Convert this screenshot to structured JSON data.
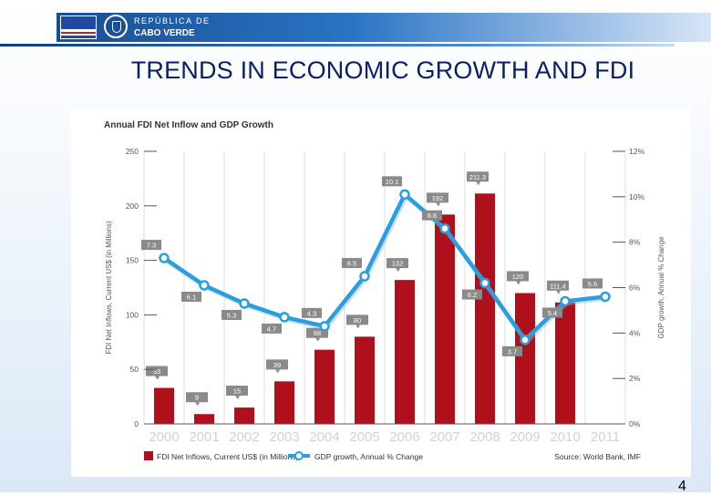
{
  "header": {
    "republic_line1": "REPÚBLICA DE",
    "republic_line2": "CABO VERDE"
  },
  "slide": {
    "title": "TRENDS IN ECONOMIC GROWTH AND FDI",
    "page_number": "4"
  },
  "colors": {
    "bar": "#b0101c",
    "line": "#2a9fe0",
    "header_blue": "#1a4f93",
    "title_navy": "#0b1f66"
  },
  "chart_data": {
    "type": "bar",
    "title": "Annual FDI Net Inflow and GDP Growth",
    "categories": [
      "2000",
      "2001",
      "2002",
      "2003",
      "2004",
      "2005",
      "2006",
      "2007",
      "2008",
      "2009",
      "2010",
      "2011"
    ],
    "ylabel": "FDI Net Inflows, Current US$ (in Millions)",
    "y2label": "GDP growth, Annual % Change",
    "ylim": [
      0,
      250
    ],
    "y2lim": [
      0,
      12
    ],
    "yticks": [
      "0",
      "50",
      "100",
      "150",
      "200",
      "250"
    ],
    "y2ticks": [
      "0%",
      "2%",
      "4%",
      "6%",
      "8%",
      "10%",
      "12%"
    ],
    "series": [
      {
        "name": "FDI Net Inflows, Current US$ (in Millions)",
        "kind": "bar",
        "values": [
          33,
          9,
          15,
          39,
          68,
          80,
          132,
          192,
          211.3,
          120,
          111.4,
          null
        ],
        "labels": [
          "33",
          "9",
          "15",
          "39",
          "68",
          "80",
          "132",
          "192",
          "211.3",
          "120",
          "111.4",
          ""
        ]
      },
      {
        "name": "GDP growth, Annual % Change",
        "kind": "line",
        "values": [
          7.3,
          6.1,
          5.3,
          4.7,
          4.3,
          6.5,
          10.1,
          8.6,
          6.2,
          3.7,
          5.4,
          5.6
        ],
        "labels": [
          "7.3",
          "6.1",
          "5.3",
          "4.7",
          "4.3",
          "6.5",
          "10.1",
          "8.6",
          "6.2",
          "3.7",
          "5.4",
          "5.6"
        ]
      }
    ],
    "legend": [
      "FDI Net Inflows, Current US$ (in Millions)",
      "GDP growth, Annual % Change"
    ],
    "legend_position": "bottom",
    "source": "Source: World Bank, IMF",
    "grid": true
  }
}
